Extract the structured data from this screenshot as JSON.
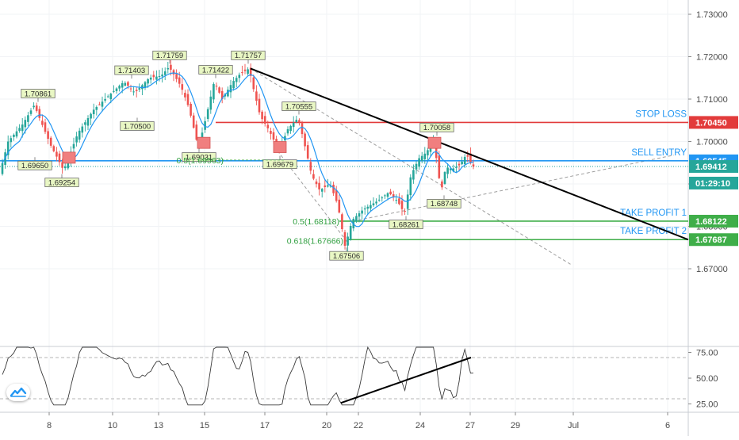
{
  "chart_data": [
    {
      "type": "candlestick",
      "title": "",
      "y_axis_ticks": [
        "1.73000",
        "1.72000",
        "1.71000",
        "1.70000",
        "1.69000",
        "1.68000",
        "1.67000"
      ],
      "ylim": [
        1.6615,
        1.7345
      ],
      "x_axis_ticks": [
        "8",
        "10",
        "13",
        "15",
        "17",
        "20",
        "22",
        "24",
        "27",
        "29",
        "Jul",
        "6"
      ],
      "swing_labels": [
        "1.70861",
        "1.69650",
        "1.69254",
        "1.71403",
        "1.70500",
        "1.71759",
        "1.69031",
        "1.71422",
        "1.71757",
        "1.70555",
        "1.69679",
        "1.67506",
        "1.68261",
        "1.70058",
        "1.68748"
      ],
      "fib_labels": [
        "0.5(1.69563)",
        "0.5(1.68118)",
        "0.618(1.67666)"
      ],
      "levels": [
        {
          "name": "STOP LOSS",
          "price": "1.70450",
          "value": 1.7045,
          "color": "#e23b3b",
          "text_color": "#2196f3"
        },
        {
          "name": "SELL ENTRY",
          "price": "1.69545",
          "value": 1.69545,
          "color": "#2196f3",
          "text_color": "#2196f3"
        },
        {
          "name": "TAKE PROFIT 1",
          "price": "1.68122",
          "value": 1.68122,
          "color": "#3fae49",
          "text_color": "#2196f3"
        },
        {
          "name": "TAKE PROFIT 2",
          "price": "1.67687",
          "value": 1.67687,
          "color": "#3fae49",
          "text_color": "#2196f3"
        }
      ],
      "current_price": {
        "price": "1.69412",
        "value": 1.69412,
        "countdown": "01:29:10",
        "color": "#26a69a"
      },
      "colors": {
        "up": "#26a69a",
        "down": "#ef5350",
        "ma": "#2196f3",
        "trendline": "#000000",
        "dashed": "#9e9e9e"
      }
    },
    {
      "type": "line",
      "title": "",
      "y_axis_ticks": [
        "75.00",
        "50.00",
        "25.00"
      ],
      "ylim": [
        16,
        83
      ],
      "reference_lines": [
        70,
        30
      ]
    }
  ]
}
